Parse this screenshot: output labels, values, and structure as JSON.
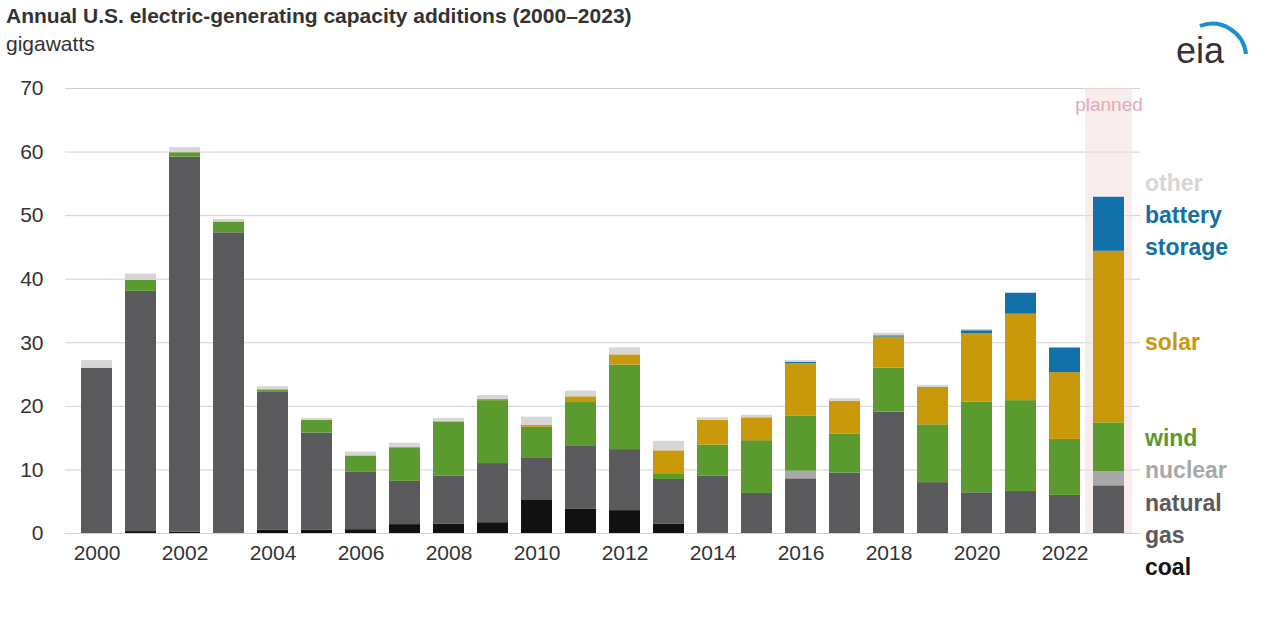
{
  "chart_data": {
    "type": "bar",
    "title": "Annual U.S. electric-generating capacity additions (2000–2023)",
    "subtitle": "gigawatts",
    "source": "eia",
    "stacked": true,
    "grid": true,
    "categories": [
      "2000",
      null,
      "2002",
      null,
      "2004",
      null,
      "2006",
      null,
      "2008",
      null,
      "2010",
      null,
      "2012",
      null,
      "2014",
      null,
      "2016",
      null,
      "2018",
      null,
      "2020",
      null,
      "2022",
      null
    ],
    "annotations": [
      {
        "text": "planned",
        "index": 23
      }
    ],
    "ylim": [
      0,
      70
    ],
    "yticks": [
      0,
      10,
      20,
      30,
      40,
      50,
      60,
      70
    ],
    "series": [
      {
        "name": "coal",
        "color": "#111111",
        "values": [
          0,
          0.3,
          0.2,
          0.1,
          0.5,
          0.5,
          0.6,
          1.4,
          1.5,
          1.7,
          5.3,
          3.8,
          3.6,
          1.5,
          0.1,
          0,
          0,
          0,
          0,
          0,
          0,
          0,
          0,
          0
        ]
      },
      {
        "name": "natural gas",
        "color": "#5a5a5c",
        "values": [
          26,
          37.8,
          59,
          47.2,
          21.7,
          15.3,
          9.1,
          6.8,
          7.5,
          9.3,
          6.5,
          10.0,
          9.6,
          7.0,
          8.9,
          6.3,
          8.6,
          9.5,
          19.1,
          8.0,
          6.4,
          6.6,
          6.0,
          7.5
        ]
      },
      {
        "name": "nuclear",
        "color": "#a8a8a8",
        "values": [
          0,
          0,
          0,
          0,
          0,
          0,
          0,
          0,
          0,
          0,
          0,
          0,
          0,
          0,
          0,
          0,
          1.2,
          0,
          0,
          0,
          0,
          0,
          0,
          2.2
        ]
      },
      {
        "name": "wind",
        "color": "#5b9a2e",
        "values": [
          0,
          1.7,
          0.7,
          1.7,
          0.4,
          2.0,
          2.5,
          5.3,
          8.5,
          9.9,
          4.9,
          6.8,
          13.3,
          0.9,
          4.9,
          8.3,
          8.7,
          6.1,
          6.9,
          9.1,
          14.3,
          14.3,
          8.8,
          7.7
        ]
      },
      {
        "name": "solar",
        "color": "#c9990b",
        "values": [
          0,
          0,
          0,
          0,
          0,
          0,
          0,
          0,
          0.1,
          0.2,
          0.3,
          0.9,
          1.6,
          3.6,
          3.9,
          3.6,
          8.2,
          5.2,
          4.9,
          5.8,
          10.7,
          13.6,
          10.5,
          27.0
        ]
      },
      {
        "name": "battery storage",
        "color": "#1270a8",
        "values": [
          0,
          0,
          0,
          0,
          0,
          0,
          0,
          0,
          0,
          0,
          0,
          0,
          0,
          0,
          0,
          0,
          0.2,
          0,
          0.2,
          0.1,
          0.5,
          3.3,
          3.9,
          8.5
        ]
      },
      {
        "name": "other",
        "color": "#d6d6d6",
        "values": [
          1.2,
          1.0,
          0.8,
          0.4,
          0.5,
          0.3,
          0.6,
          0.7,
          0.5,
          0.6,
          1.3,
          0.9,
          1.1,
          1.5,
          0.4,
          0.4,
          0.3,
          0.4,
          0.4,
          0.3,
          0.2,
          0.1,
          0.1,
          0.1
        ]
      }
    ]
  }
}
